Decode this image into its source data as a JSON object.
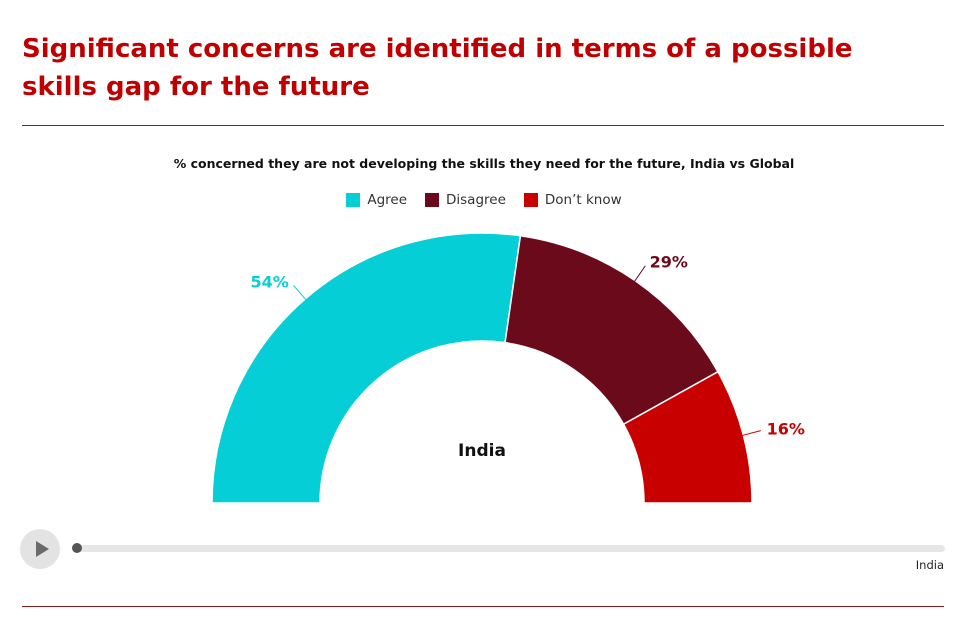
{
  "header": {
    "title_line1": "Significant concerns are identified in terms of a possible",
    "title_line2": "skills gap for the future"
  },
  "chart_data": {
    "type": "pie",
    "variant": "semi-donut",
    "subtitle": "% concerned they are not developing the skills they need for the future, India vs Global",
    "center_label": "India",
    "legend_placement": "top-center",
    "series": [
      {
        "name": "Agree",
        "value": 54,
        "label": "54%",
        "color": "#06ced6"
      },
      {
        "name": "Disagree",
        "value": 29,
        "label": "29%",
        "color": "#6b0a1b"
      },
      {
        "name": "Don’t know",
        "value": 16,
        "label": "16%",
        "color": "#c80000"
      }
    ]
  },
  "player": {
    "play_icon": "play-icon",
    "progress": 0,
    "current_label": "India"
  }
}
